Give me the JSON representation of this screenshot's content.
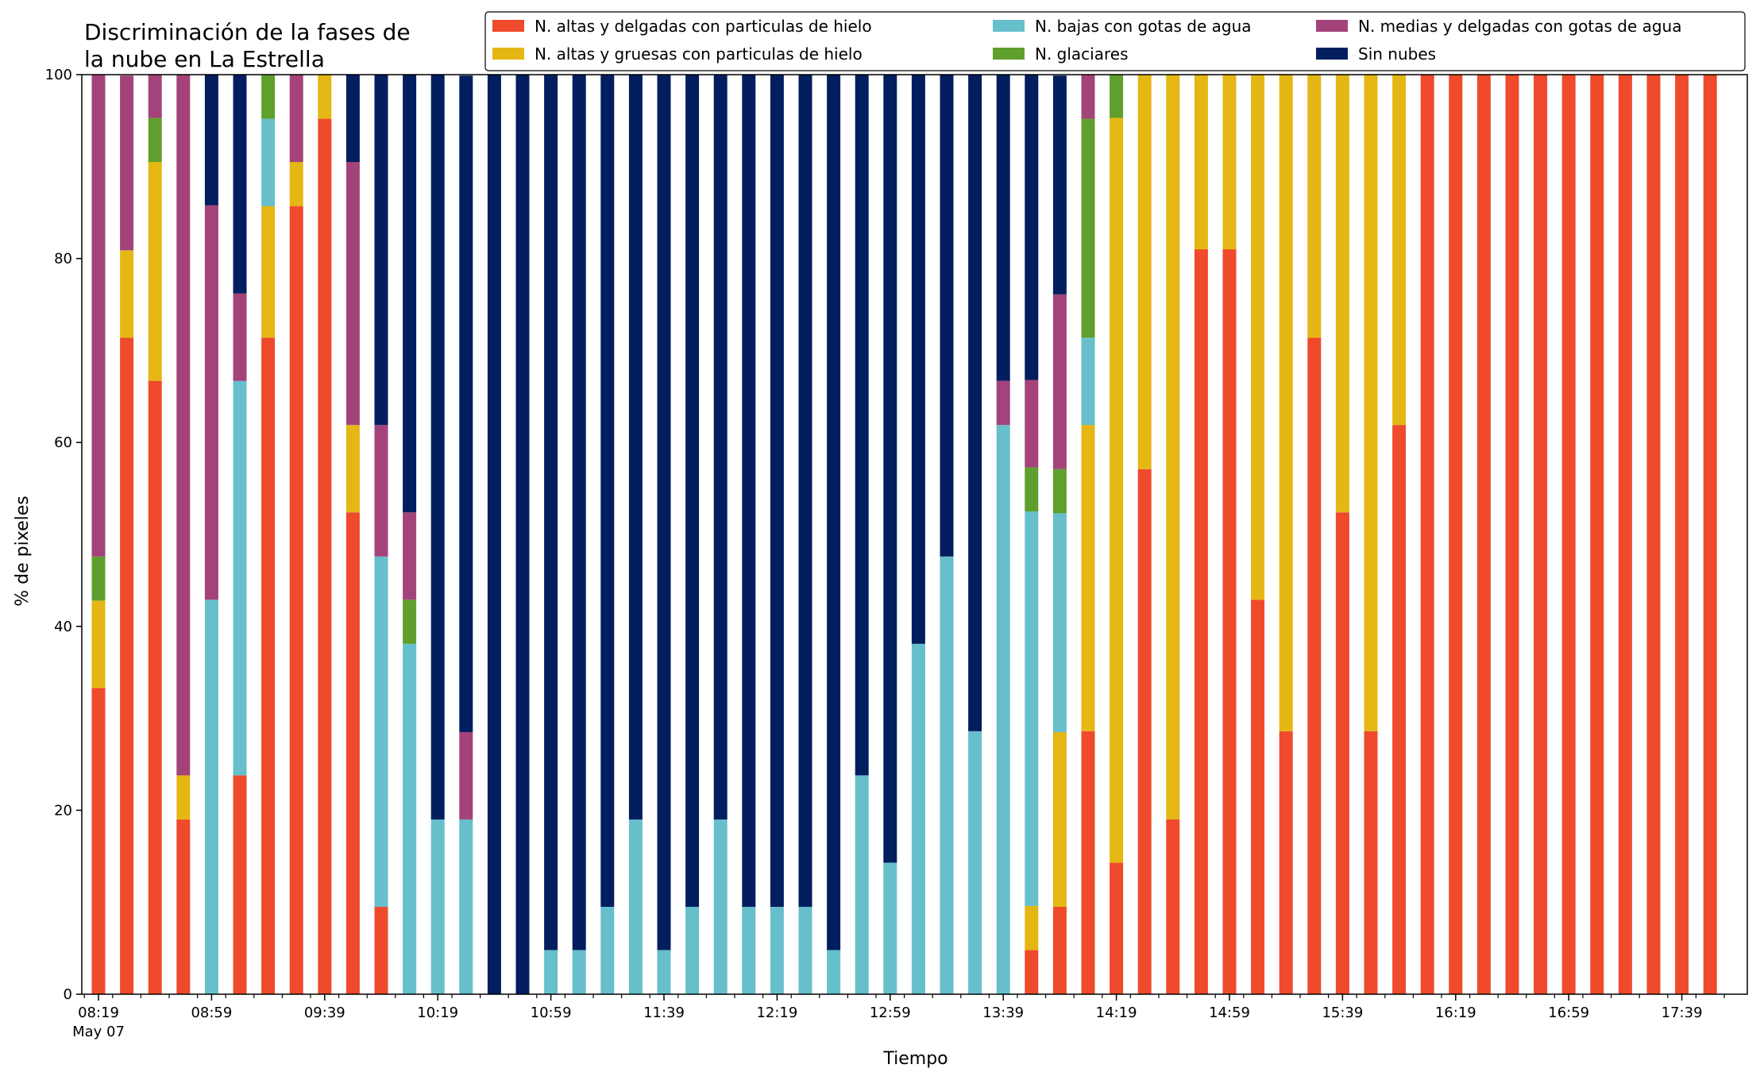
{
  "chart_data": {
    "type": "bar",
    "stacked": true,
    "title": "Discriminación de la fases de la nube en La Estrella",
    "xlabel": "Tiempo",
    "ylabel": "% de pixeles",
    "ylim": [
      0,
      100
    ],
    "yticks": [
      0,
      20,
      40,
      60,
      80,
      100
    ],
    "grid": false,
    "legend_position": "top-right",
    "x_tick_labels": [
      "08:19",
      "08:59",
      "09:39",
      "10:19",
      "10:59",
      "11:39",
      "12:19",
      "12:59",
      "13:39",
      "14:19",
      "14:59",
      "15:39",
      "16:19",
      "16:59",
      "17:39"
    ],
    "x_sublabel": "May 07",
    "categories": [
      "08:19",
      "08:29",
      "08:39",
      "08:49",
      "08:59",
      "09:09",
      "09:19",
      "09:29",
      "09:39",
      "09:49",
      "09:59",
      "10:09",
      "10:19",
      "10:29",
      "10:39",
      "10:49",
      "10:59",
      "11:09",
      "11:19",
      "11:29",
      "11:39",
      "11:49",
      "11:59",
      "12:09",
      "12:19",
      "12:29",
      "12:39",
      "12:49",
      "12:59",
      "13:09",
      "13:19",
      "13:29",
      "13:39",
      "13:49",
      "13:59",
      "14:09",
      "14:19",
      "14:29",
      "14:39",
      "14:49",
      "14:59",
      "15:09",
      "15:19",
      "15:29",
      "15:39",
      "15:49",
      "15:59",
      "16:09",
      "16:19",
      "16:29",
      "16:39",
      "16:49",
      "16:59",
      "17:09",
      "17:19",
      "17:29",
      "17:39",
      "17:49"
    ],
    "series": [
      {
        "name": "N. altas y delgadas con particulas de hielo",
        "color": "#ee4a2b",
        "values": [
          33.3,
          71.4,
          66.7,
          19.0,
          0,
          23.8,
          71.4,
          85.7,
          95.2,
          52.4,
          9.5,
          0,
          0,
          0,
          0,
          0,
          0,
          0,
          0,
          0,
          0,
          0,
          0,
          0,
          0,
          0,
          0,
          0,
          0,
          0,
          0,
          0,
          0,
          4.8,
          9.5,
          28.6,
          14.3,
          57.1,
          19.0,
          81.0,
          81.0,
          42.9,
          28.6,
          71.4,
          52.4,
          28.6,
          61.9,
          100,
          100,
          100,
          100,
          100,
          100,
          100,
          100,
          100,
          100,
          100
        ]
      },
      {
        "name": "N. altas y gruesas con particulas de hielo",
        "color": "#e4b714",
        "values": [
          9.5,
          9.5,
          23.8,
          4.8,
          0,
          0,
          14.3,
          4.8,
          4.8,
          9.5,
          0,
          0,
          0,
          0,
          0,
          0,
          0,
          0,
          0,
          0,
          0,
          0,
          0,
          0,
          0,
          0,
          0,
          0,
          0,
          0,
          0,
          0,
          0,
          4.8,
          19.0,
          33.3,
          81.0,
          42.9,
          81.0,
          19.0,
          19.0,
          57.1,
          71.4,
          28.6,
          47.6,
          71.4,
          38.1,
          0,
          0,
          0,
          0,
          0,
          0,
          0,
          0,
          0,
          0,
          0
        ]
      },
      {
        "name": "N. bajas con gotas de agua",
        "color": "#66bfcb",
        "values": [
          0,
          0,
          0,
          0,
          42.9,
          42.9,
          9.5,
          0,
          0,
          0,
          38.1,
          38.1,
          19.0,
          19.0,
          0,
          0,
          4.8,
          4.8,
          9.5,
          19.0,
          4.8,
          9.5,
          19.0,
          9.5,
          9.5,
          9.5,
          4.8,
          23.8,
          14.3,
          38.1,
          47.6,
          28.6,
          61.9,
          42.9,
          23.8,
          9.5,
          0,
          0,
          0,
          0,
          0,
          0,
          0,
          0,
          0,
          0,
          0,
          0,
          0,
          0,
          0,
          0,
          0,
          0,
          0,
          0,
          0,
          0
        ]
      },
      {
        "name": "N. glaciares",
        "color": "#5f9f2d",
        "values": [
          4.8,
          0,
          4.8,
          0,
          0,
          0,
          4.8,
          0,
          0,
          0,
          0,
          4.8,
          0,
          0,
          0,
          0,
          0,
          0,
          0,
          0,
          0,
          0,
          0,
          0,
          0,
          0,
          0,
          0,
          0,
          0,
          0,
          0,
          0,
          4.8,
          4.8,
          23.8,
          4.8,
          0,
          0,
          0,
          0,
          0,
          0,
          0,
          0,
          0,
          0,
          0,
          0,
          0,
          0,
          0,
          0,
          0,
          0,
          0,
          0,
          0
        ]
      },
      {
        "name": "N. medias y delgadas con gotas de agua",
        "color": "#a3437a",
        "values": [
          52.4,
          19.0,
          4.8,
          76.2,
          42.9,
          9.5,
          0,
          9.5,
          0,
          28.6,
          14.3,
          9.5,
          0,
          9.5,
          0,
          0,
          0,
          0,
          0,
          0,
          0,
          0,
          0,
          0,
          0,
          0,
          0,
          0,
          0,
          0,
          0,
          0,
          4.8,
          9.5,
          19.0,
          4.8,
          0,
          0,
          0,
          0,
          0,
          0,
          0,
          0,
          0,
          0,
          0,
          0,
          0,
          0,
          0,
          0,
          0,
          0,
          0,
          0,
          0,
          0
        ]
      },
      {
        "name": "Sin nubes",
        "color": "#031e5f",
        "values": [
          0,
          0,
          0,
          0,
          14.2,
          23.8,
          0,
          0,
          0,
          9.5,
          38.1,
          47.6,
          81.0,
          71.4,
          100,
          100,
          95.2,
          95.2,
          90.5,
          81.0,
          95.2,
          90.5,
          81.0,
          90.5,
          90.5,
          90.5,
          95.2,
          76.2,
          85.7,
          61.9,
          52.4,
          71.4,
          33.3,
          33.3,
          23.8,
          0,
          0,
          0,
          0,
          0,
          0,
          0,
          0,
          0,
          0,
          0,
          0,
          0,
          0,
          0,
          0,
          0,
          0,
          0,
          0,
          0,
          0,
          0
        ]
      }
    ]
  }
}
